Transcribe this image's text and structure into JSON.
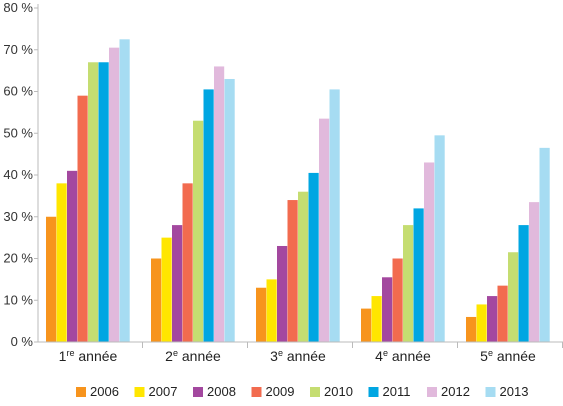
{
  "chart_data": {
    "type": "bar",
    "categories": [
      {
        "base": "1",
        "sup": "re",
        "rest": " année"
      },
      {
        "base": "2",
        "sup": "e",
        "rest": " année"
      },
      {
        "base": "3",
        "sup": "e",
        "rest": " année"
      },
      {
        "base": "4",
        "sup": "e",
        "rest": " année"
      },
      {
        "base": "5",
        "sup": "e",
        "rest": " année"
      }
    ],
    "series": [
      {
        "name": "2006",
        "color": "#F7941D",
        "values": [
          30,
          20,
          13,
          8,
          6
        ]
      },
      {
        "name": "2007",
        "color": "#FFE600",
        "values": [
          38,
          25,
          15,
          11,
          9
        ]
      },
      {
        "name": "2008",
        "color": "#A3489F",
        "values": [
          41,
          28,
          23,
          15.5,
          11
        ]
      },
      {
        "name": "2009",
        "color": "#F26B4F",
        "values": [
          59,
          38,
          34,
          20,
          13.5
        ]
      },
      {
        "name": "2010",
        "color": "#C5DD71",
        "values": [
          67,
          53,
          36,
          28,
          21.5
        ]
      },
      {
        "name": "2011",
        "color": "#00A6E2",
        "values": [
          67,
          60.5,
          40.5,
          32,
          28
        ]
      },
      {
        "name": "2012",
        "color": "#E1B9DC",
        "values": [
          70.5,
          66,
          53.5,
          43,
          33.5
        ]
      },
      {
        "name": "2013",
        "color": "#A6DCF2",
        "values": [
          72.5,
          63,
          60.5,
          49.5,
          46.5
        ]
      }
    ],
    "y_ticks": [
      "0 %",
      "10 %",
      "20 %",
      "30 %",
      "40 %",
      "50 %",
      "60 %",
      "70 %",
      "80 %"
    ],
    "ylim": [
      0,
      80
    ],
    "grid": false,
    "legend_position": "bottom",
    "axis_color": "#BBBBBB"
  }
}
